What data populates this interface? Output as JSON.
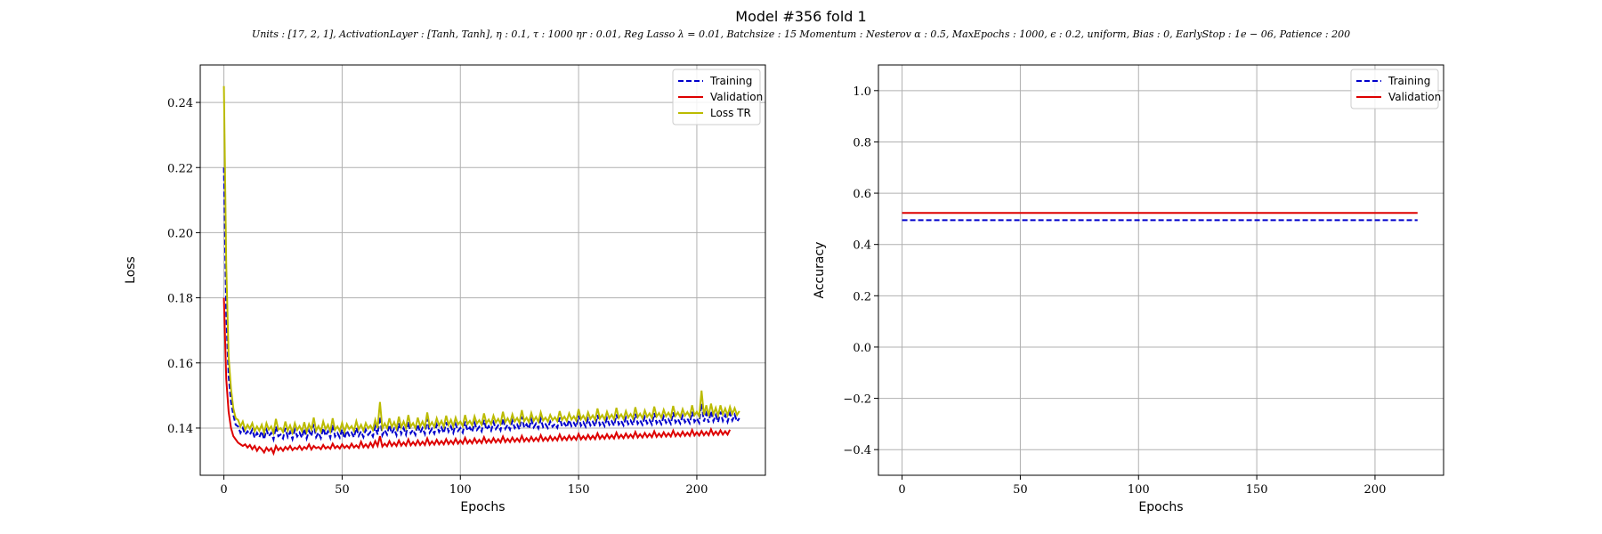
{
  "figure": {
    "title": "Model #356 fold 1",
    "subtitle": "Units : [17, 2, 1], ActivationLayer : [Tanh, Tanh], η : 0.1, τ : 1000 ηr : 0.01, Reg Lasso λ = 0.01, Batchsize : 15 Momentum : Nesterov α : 0.5, MaxEpochs : 1000, ϵ : 0.2, uniform, Bias : 0, EarlyStop : 1e − 06, Patience : 200"
  },
  "chart_data": [
    {
      "type": "line",
      "xlabel": "Epochs",
      "ylabel": "Loss",
      "xlim": [
        -10,
        229
      ],
      "ylim": [
        0.1255,
        0.2515
      ],
      "xticks": [
        0,
        50,
        100,
        150,
        200
      ],
      "yticks": [
        0.14,
        0.16,
        0.18,
        0.2,
        0.22,
        0.24
      ],
      "grid": true,
      "legend_position": "top-right",
      "x_range": [
        0,
        218
      ],
      "series": [
        {
          "name": "Training",
          "color": "#0000cc",
          "style": "dashed",
          "values": [
            0.22,
            0.175,
            0.156,
            0.148,
            0.144,
            0.141,
            0.1405,
            0.1385,
            0.14,
            0.138,
            0.139,
            0.138,
            0.1395,
            0.137,
            0.1385,
            0.1372,
            0.139,
            0.1365,
            0.1395,
            0.1375,
            0.1385,
            0.1365,
            0.1405,
            0.1375,
            0.138,
            0.1368,
            0.14,
            0.1372,
            0.1388,
            0.1366,
            0.1395,
            0.1374,
            0.1386,
            0.137,
            0.1398,
            0.1368,
            0.1392,
            0.1375,
            0.1412,
            0.1372,
            0.1386,
            0.1369,
            0.14,
            0.1376,
            0.139,
            0.137,
            0.141,
            0.1374,
            0.1385,
            0.1371,
            0.1396,
            0.1368,
            0.1392,
            0.1377,
            0.1386,
            0.1371,
            0.1401,
            0.1376,
            0.139,
            0.1372,
            0.1395,
            0.1379,
            0.1388,
            0.1374,
            0.1405,
            0.138,
            0.1435,
            0.1378,
            0.1394,
            0.138,
            0.141,
            0.1383,
            0.1398,
            0.1378,
            0.1415,
            0.1382,
            0.14,
            0.138,
            0.142,
            0.1384,
            0.1395,
            0.1379,
            0.1412,
            0.1385,
            0.14,
            0.1382,
            0.1428,
            0.1386,
            0.1398,
            0.1383,
            0.141,
            0.1388,
            0.1402,
            0.1384,
            0.1418,
            0.1389,
            0.1405,
            0.1385,
            0.1412,
            0.1391,
            0.14,
            0.1386,
            0.142,
            0.1392,
            0.1402,
            0.1388,
            0.1416,
            0.1394,
            0.1404,
            0.139,
            0.1425,
            0.1395,
            0.1406,
            0.1392,
            0.1418,
            0.1397,
            0.1408,
            0.1393,
            0.143,
            0.1398,
            0.141,
            0.1395,
            0.1422,
            0.14,
            0.1411,
            0.1396,
            0.1435,
            0.1401,
            0.1412,
            0.1398,
            0.1426,
            0.1402,
            0.1414,
            0.1399,
            0.1428,
            0.1403,
            0.1412,
            0.14,
            0.142,
            0.1404,
            0.1413,
            0.1401,
            0.1432,
            0.1405,
            0.1415,
            0.1402,
            0.1425,
            0.1406,
            0.1416,
            0.1403,
            0.1438,
            0.1407,
            0.1418,
            0.1404,
            0.1428,
            0.1408,
            0.1419,
            0.1405,
            0.144,
            0.1409,
            0.142,
            0.1406,
            0.143,
            0.141,
            0.1421,
            0.1407,
            0.1442,
            0.1411,
            0.1422,
            0.1408,
            0.1432,
            0.1412,
            0.1423,
            0.1409,
            0.1444,
            0.1413,
            0.1424,
            0.141,
            0.1434,
            0.1414,
            0.1425,
            0.1411,
            0.1446,
            0.1415,
            0.1426,
            0.1412,
            0.1436,
            0.1416,
            0.1427,
            0.1413,
            0.1448,
            0.1417,
            0.1428,
            0.1414,
            0.1438,
            0.1418,
            0.1429,
            0.1415,
            0.145,
            0.1419,
            0.143,
            0.1416,
            0.1475,
            0.142,
            0.1445,
            0.1417,
            0.1452,
            0.1421,
            0.144,
            0.1418,
            0.145,
            0.1422,
            0.144,
            0.1419,
            0.1445,
            0.1423,
            0.1441,
            0.142,
            0.143
          ]
        },
        {
          "name": "Validation",
          "color": "#dd0000",
          "style": "solid",
          "values": [
            0.18,
            0.155,
            0.145,
            0.14,
            0.1375,
            0.1365,
            0.1355,
            0.135,
            0.1345,
            0.135,
            0.134,
            0.1348,
            0.1335,
            0.1345,
            0.133,
            0.1342,
            0.1335,
            0.1325,
            0.134,
            0.133,
            0.1338,
            0.1322,
            0.1345,
            0.1332,
            0.134,
            0.133,
            0.1342,
            0.1334,
            0.1345,
            0.1332,
            0.134,
            0.1335,
            0.1345,
            0.1333,
            0.1342,
            0.1336,
            0.135,
            0.1334,
            0.1345,
            0.1338,
            0.1342,
            0.1335,
            0.1348,
            0.1337,
            0.1343,
            0.1336,
            0.1352,
            0.1338,
            0.1345,
            0.1337,
            0.135,
            0.1339,
            0.1346,
            0.1338,
            0.1352,
            0.134,
            0.1347,
            0.1339,
            0.1358,
            0.1341,
            0.135,
            0.134,
            0.1355,
            0.1342,
            0.136,
            0.1345,
            0.1375,
            0.1343,
            0.1352,
            0.1344,
            0.136,
            0.1345,
            0.1355,
            0.1345,
            0.1362,
            0.1346,
            0.1356,
            0.1346,
            0.1365,
            0.1347,
            0.1357,
            0.1347,
            0.1362,
            0.1348,
            0.1358,
            0.1348,
            0.1368,
            0.1349,
            0.1359,
            0.1349,
            0.1364,
            0.135,
            0.136,
            0.135,
            0.1366,
            0.1351,
            0.1361,
            0.1351,
            0.1367,
            0.1352,
            0.1362,
            0.1352,
            0.137,
            0.1353,
            0.1363,
            0.1353,
            0.1368,
            0.1354,
            0.1364,
            0.1354,
            0.1372,
            0.1355,
            0.1365,
            0.1355,
            0.1369,
            0.1356,
            0.1366,
            0.1356,
            0.1374,
            0.1357,
            0.1367,
            0.1357,
            0.1371,
            0.1358,
            0.1368,
            0.1358,
            0.1376,
            0.1359,
            0.1369,
            0.1359,
            0.1373,
            0.136,
            0.137,
            0.136,
            0.1378,
            0.1361,
            0.1371,
            0.1361,
            0.1375,
            0.1362,
            0.1372,
            0.1362,
            0.138,
            0.1363,
            0.1373,
            0.1363,
            0.1377,
            0.1364,
            0.1374,
            0.1364,
            0.1382,
            0.1365,
            0.1375,
            0.1365,
            0.1379,
            0.1366,
            0.1376,
            0.1366,
            0.1384,
            0.1367,
            0.1377,
            0.1367,
            0.1381,
            0.1368,
            0.1378,
            0.1368,
            0.1386,
            0.1369,
            0.1379,
            0.1369,
            0.1383,
            0.137,
            0.138,
            0.137,
            0.1388,
            0.1371,
            0.1381,
            0.1371,
            0.1385,
            0.1372,
            0.1382,
            0.1372,
            0.139,
            0.1373,
            0.1383,
            0.1373,
            0.1387,
            0.1374,
            0.1384,
            0.1374,
            0.1392,
            0.1375,
            0.1385,
            0.1375,
            0.1389,
            0.1376,
            0.1386,
            0.1376,
            0.1394,
            0.1377,
            0.1387,
            0.1377,
            0.1391,
            0.1378,
            0.1388,
            0.1378,
            0.1396,
            0.1379,
            0.1389,
            0.1379,
            0.1393,
            0.138,
            0.139,
            0.138,
            0.1395
          ]
        },
        {
          "name": "Loss TR",
          "color": "#bbbb00",
          "style": "solid",
          "values": [
            0.245,
            0.19,
            0.162,
            0.152,
            0.146,
            0.143,
            0.1425,
            0.1405,
            0.142,
            0.1395,
            0.141,
            0.1398,
            0.1415,
            0.139,
            0.1405,
            0.1392,
            0.141,
            0.1385,
            0.1415,
            0.1395,
            0.1405,
            0.1385,
            0.1428,
            0.1395,
            0.14,
            0.1388,
            0.142,
            0.1392,
            0.1408,
            0.1386,
            0.1415,
            0.1394,
            0.1406,
            0.139,
            0.1418,
            0.1388,
            0.1412,
            0.1395,
            0.1432,
            0.1392,
            0.1406,
            0.1389,
            0.142,
            0.1396,
            0.141,
            0.139,
            0.143,
            0.1394,
            0.1405,
            0.1391,
            0.1416,
            0.1388,
            0.1412,
            0.1397,
            0.1406,
            0.1391,
            0.1421,
            0.1396,
            0.141,
            0.1392,
            0.1415,
            0.1399,
            0.1408,
            0.1394,
            0.1425,
            0.14,
            0.148,
            0.1398,
            0.1414,
            0.14,
            0.143,
            0.1403,
            0.1418,
            0.1398,
            0.1435,
            0.1402,
            0.142,
            0.14,
            0.144,
            0.1404,
            0.1415,
            0.1399,
            0.1432,
            0.1405,
            0.142,
            0.1402,
            0.1448,
            0.1406,
            0.1418,
            0.1403,
            0.143,
            0.1408,
            0.1422,
            0.1404,
            0.1438,
            0.1409,
            0.1425,
            0.1405,
            0.1432,
            0.1411,
            0.142,
            0.1406,
            0.144,
            0.1412,
            0.1422,
            0.1408,
            0.1436,
            0.1414,
            0.1424,
            0.141,
            0.1445,
            0.1415,
            0.1426,
            0.1412,
            0.1438,
            0.1417,
            0.1428,
            0.1413,
            0.145,
            0.1418,
            0.143,
            0.1415,
            0.1442,
            0.142,
            0.1431,
            0.1416,
            0.1455,
            0.1421,
            0.1432,
            0.1418,
            0.1446,
            0.1422,
            0.1434,
            0.1419,
            0.1448,
            0.1423,
            0.1432,
            0.142,
            0.144,
            0.1424,
            0.1433,
            0.1421,
            0.1452,
            0.1425,
            0.1435,
            0.1422,
            0.1445,
            0.1426,
            0.1436,
            0.1423,
            0.1458,
            0.1427,
            0.1438,
            0.1424,
            0.1448,
            0.1428,
            0.1439,
            0.1425,
            0.146,
            0.1429,
            0.144,
            0.1426,
            0.145,
            0.143,
            0.1441,
            0.1427,
            0.1462,
            0.1431,
            0.1442,
            0.1428,
            0.1452,
            0.1432,
            0.1443,
            0.1429,
            0.1464,
            0.1433,
            0.1444,
            0.143,
            0.1454,
            0.1434,
            0.1445,
            0.1431,
            0.1466,
            0.1435,
            0.1446,
            0.1432,
            0.1456,
            0.1436,
            0.1447,
            0.1433,
            0.1468,
            0.1437,
            0.1448,
            0.1434,
            0.1458,
            0.1438,
            0.1449,
            0.1435,
            0.147,
            0.1439,
            0.145,
            0.1436,
            0.1515,
            0.144,
            0.147,
            0.1437,
            0.1475,
            0.1441,
            0.1462,
            0.1438,
            0.147,
            0.1442,
            0.146,
            0.1439,
            0.1465,
            0.1443,
            0.1461,
            0.144,
            0.1452
          ]
        }
      ]
    },
    {
      "type": "line",
      "xlabel": "Epochs",
      "ylabel": "Accuracy",
      "xlim": [
        -10,
        229
      ],
      "ylim": [
        -0.5,
        1.1
      ],
      "xticks": [
        0,
        50,
        100,
        150,
        200
      ],
      "yticks": [
        -0.4,
        -0.2,
        0.0,
        0.2,
        0.4,
        0.6,
        0.8,
        1.0
      ],
      "grid": true,
      "legend_position": "top-right",
      "x_range": [
        0,
        218
      ],
      "series": [
        {
          "name": "Training",
          "color": "#0000cc",
          "style": "dashed",
          "constant": 0.495
        },
        {
          "name": "Validation",
          "color": "#dd0000",
          "style": "solid",
          "constant": 0.523
        }
      ]
    }
  ]
}
